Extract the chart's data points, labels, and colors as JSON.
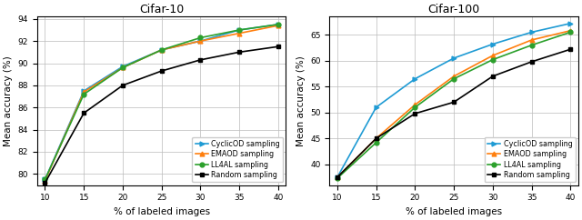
{
  "x": [
    10,
    15,
    20,
    25,
    30,
    35,
    40
  ],
  "cifar10": {
    "title": "Cifar-10",
    "ylabel": "Mean accuracy (%)",
    "xlabel": "% of labeled images",
    "ylim": [
      79.0,
      94.2
    ],
    "yticks": [
      80,
      82,
      84,
      86,
      88,
      90,
      92,
      94
    ],
    "CyclicOD": [
      79.5,
      87.5,
      89.7,
      91.2,
      92.0,
      93.0,
      93.5
    ],
    "EMAOD": [
      79.4,
      87.4,
      89.6,
      91.2,
      92.0,
      92.7,
      93.4
    ],
    "LL4AL": [
      79.5,
      87.2,
      89.6,
      91.2,
      92.3,
      93.0,
      93.5
    ],
    "Random": [
      79.2,
      85.5,
      88.0,
      89.3,
      90.3,
      91.0,
      91.5
    ]
  },
  "cifar100": {
    "title": "Cifar-100",
    "ylabel": "Mean accuracy (%)",
    "xlabel": "% of labeled images",
    "ylim": [
      36.0,
      68.5
    ],
    "yticks": [
      40,
      45,
      50,
      55,
      60,
      65
    ],
    "CyclicOD": [
      37.5,
      51.0,
      56.5,
      60.5,
      63.2,
      65.5,
      67.2
    ],
    "EMAOD": [
      37.5,
      45.0,
      51.5,
      57.0,
      61.0,
      64.0,
      65.8
    ],
    "LL4AL": [
      37.3,
      44.2,
      51.0,
      56.5,
      60.2,
      63.0,
      65.5
    ],
    "Random": [
      37.5,
      45.0,
      49.8,
      52.0,
      57.0,
      59.8,
      62.2
    ]
  },
  "colors": {
    "CyclicOD": "#1f9bd4",
    "EMAOD": "#ff7f0e",
    "LL4AL": "#2ca02c",
    "Random": "#000000"
  },
  "markers": {
    "CyclicOD": ">",
    "EMAOD": "^",
    "LL4AL": "o",
    "Random": "s"
  },
  "legend_labels": {
    "CyclicOD": "CyclicOD sampling",
    "EMAOD": "EMAOD sampling",
    "LL4AL": "LL4AL sampling",
    "Random": "Random sampling"
  }
}
